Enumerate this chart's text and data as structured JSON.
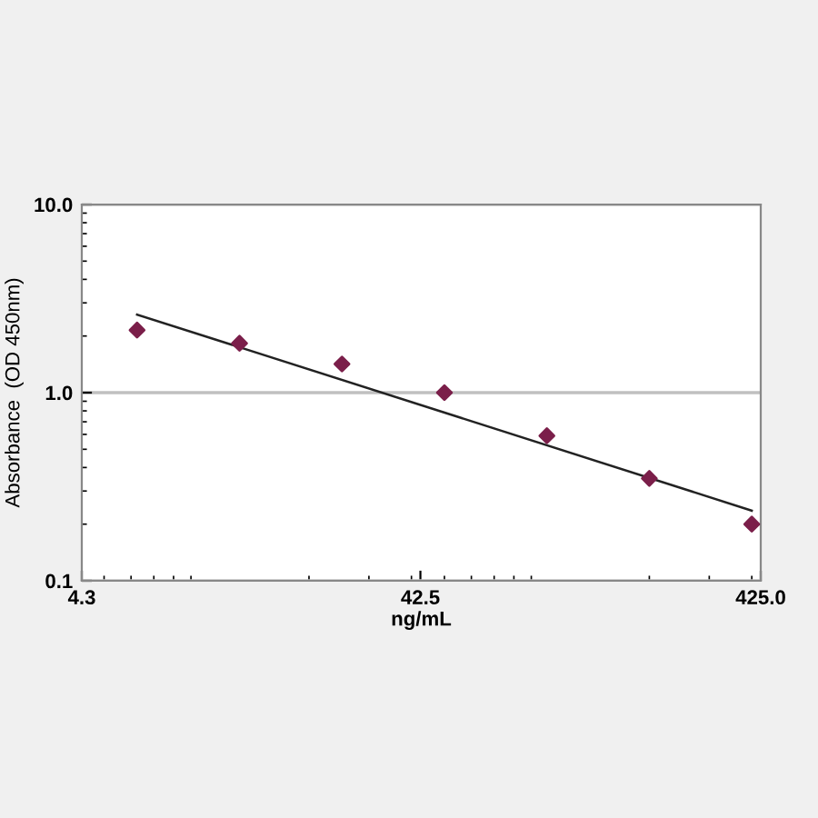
{
  "chart_data": {
    "type": "scatter",
    "xlabel": "ng/mL",
    "ylabel": "Absorbance  (OD 450nm)",
    "log": "xy",
    "grid": "y",
    "x": [
      6.25,
      12.5,
      25,
      50,
      100,
      200,
      400
    ],
    "series": [
      {
        "color": "#7b1f4a",
        "marker": "diamond",
        "values": [
          2.15,
          1.83,
          1.42,
          1.0,
          0.59,
          0.35,
          0.2
        ]
      },
      {
        "type": "line",
        "color": "#222222",
        "marker": "none",
        "line_style": "solid",
        "x": [
          6.25,
          400
        ],
        "values": [
          2.6,
          0.236
        ]
      }
    ],
    "xlim": [
      4.3,
      425
    ],
    "xticks": [
      {
        "value": 4.3,
        "label": "4.3"
      },
      {
        "value": 42.5,
        "label": "42.5"
      },
      {
        "value": 425,
        "label": "425.0"
      }
    ],
    "ylim": [
      0.1,
      10
    ],
    "yticks": [
      {
        "value": 0.1,
        "label": "0.1"
      },
      {
        "value": 1,
        "label": "1.0"
      },
      {
        "value": 10,
        "label": "10.0"
      }
    ]
  }
}
